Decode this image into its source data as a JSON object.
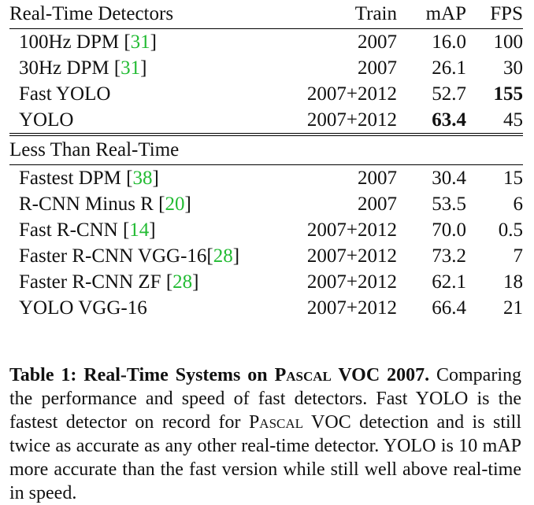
{
  "table": {
    "rt_section_label": "Real-Time Detectors",
    "headers": {
      "train": "Train",
      "map": "mAP",
      "fps": "FPS"
    },
    "rt_rows": [
      {
        "name": "100Hz DPM ",
        "cite": "31",
        "train": "2007",
        "map": "16.0",
        "fps": "100"
      },
      {
        "name": "30Hz DPM ",
        "cite": "31",
        "train": "2007",
        "map": "26.1",
        "fps": "30"
      },
      {
        "name": "Fast YOLO",
        "cite": "",
        "train": "2007+2012",
        "map": "52.7",
        "fps": "155"
      },
      {
        "name": "YOLO",
        "cite": "",
        "train": "2007+2012",
        "map": "63.4",
        "fps": "45"
      }
    ],
    "lrt_section_label": "Less Than Real-Time",
    "lrt_rows": [
      {
        "name": "Fastest DPM ",
        "cite": "38",
        "train": "2007",
        "map": "30.4",
        "fps": "15"
      },
      {
        "name": "R-CNN Minus R ",
        "cite": "20",
        "train": "2007",
        "map": "53.5",
        "fps": "6"
      },
      {
        "name": "Fast R-CNN ",
        "cite": "14",
        "train": "2007+2012",
        "map": "70.0",
        "fps": "0.5"
      },
      {
        "name": "Faster R-CNN VGG-16",
        "cite": "28",
        "train": "2007+2012",
        "map": "73.2",
        "fps": "7"
      },
      {
        "name": "Faster R-CNN ZF ",
        "cite": "28",
        "train": "2007+2012",
        "map": "62.1",
        "fps": "18"
      },
      {
        "name": "YOLO VGG-16",
        "cite": "",
        "train": "2007+2012",
        "map": "66.4",
        "fps": "21"
      }
    ],
    "cite_color": "#22bb33"
  },
  "caption": {
    "label": "Table 1: Real-Time Systems on ",
    "label_sc": "Pascal",
    "label_end": " VOC 2007.",
    "text_1": " Comparing the performance and speed of fast detectors. Fast YOLO is the fastest detector on record for ",
    "text_sc": "Pascal",
    "text_2": " VOC detection and is still twice as accurate as any other real-time detector. YOLO is 10 mAP more accurate than the fast version while still well above real-time in speed."
  }
}
